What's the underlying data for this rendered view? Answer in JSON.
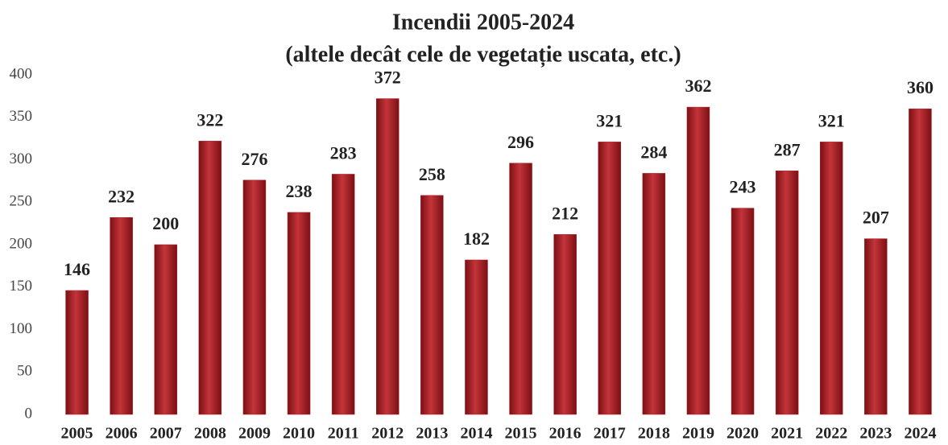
{
  "chart_data": {
    "type": "bar",
    "title": "Incendii 2005-2024",
    "subtitle": "(altele decât cele de vegetație uscata, etc.)",
    "categories": [
      "2005",
      "2006",
      "2007",
      "2008",
      "2009",
      "2010",
      "2011",
      "2012",
      "2013",
      "2014",
      "2015",
      "2016",
      "2017",
      "2018",
      "2019",
      "2020",
      "2021",
      "2022",
      "2023",
      "2024"
    ],
    "values": [
      146,
      232,
      200,
      322,
      276,
      238,
      283,
      372,
      258,
      182,
      296,
      212,
      321,
      284,
      362,
      243,
      287,
      321,
      207,
      360
    ],
    "color": "#b0252b",
    "ylim": [
      0,
      400
    ],
    "yticks": [
      0,
      50,
      100,
      150,
      200,
      250,
      300,
      350,
      400
    ],
    "grid": false
  }
}
